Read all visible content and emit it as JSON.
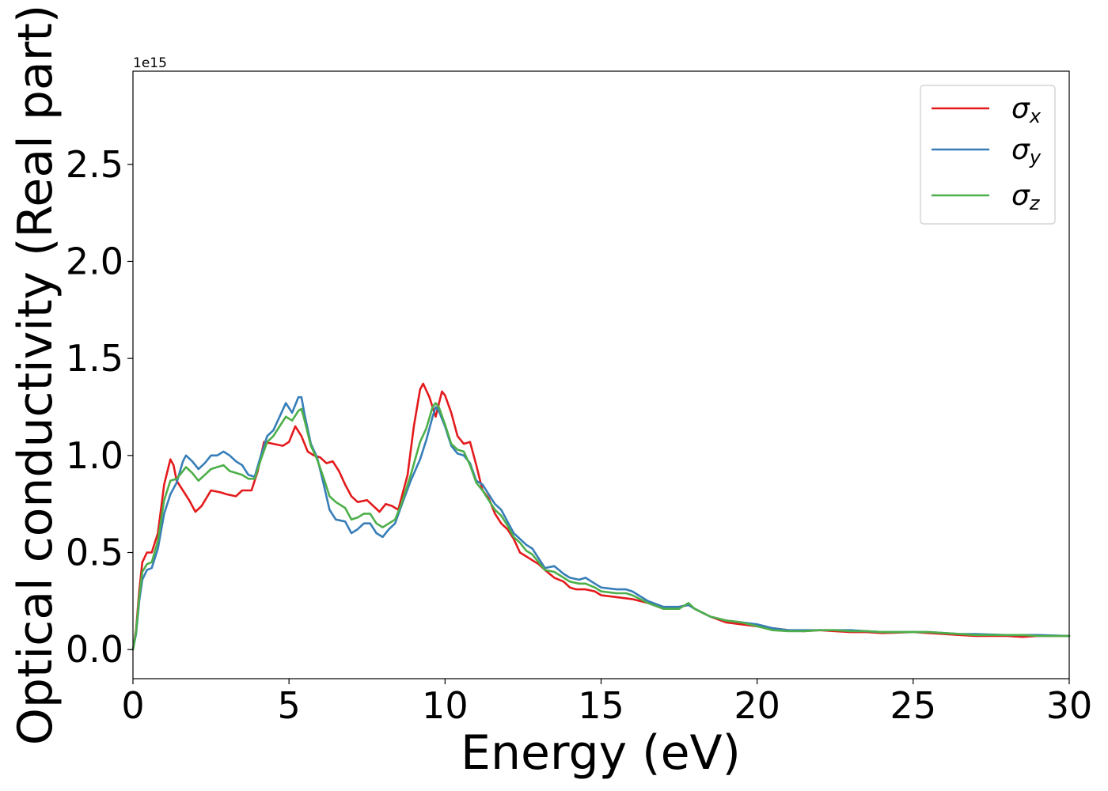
{
  "chart_data": {
    "type": "line",
    "xlabel": "Energy (eV)",
    "ylabel": "Optical conductivity (Real part)",
    "y_offset_text": "1e15",
    "xlim": [
      0,
      30
    ],
    "ylim": [
      -0.15,
      2.98
    ],
    "xticks": [
      0,
      5,
      10,
      15,
      20,
      25,
      30
    ],
    "xtick_labels": [
      "0",
      "5",
      "10",
      "15",
      "20",
      "25",
      "30"
    ],
    "yticks": [
      0.0,
      0.5,
      1.0,
      1.5,
      2.0,
      2.5
    ],
    "ytick_labels": [
      "0.0",
      "0.5",
      "1.0",
      "1.5",
      "2.0",
      "2.5"
    ],
    "legend_position": "upper-right",
    "series": [
      {
        "name": "σx",
        "base": "σ",
        "sub": "x",
        "color": "#e41a1c",
        "points": [
          [
            0,
            0
          ],
          [
            0.1,
            0.1
          ],
          [
            0.2,
            0.3
          ],
          [
            0.3,
            0.45
          ],
          [
            0.45,
            0.5
          ],
          [
            0.6,
            0.5
          ],
          [
            0.8,
            0.6
          ],
          [
            1.0,
            0.85
          ],
          [
            1.2,
            0.98
          ],
          [
            1.3,
            0.95
          ],
          [
            1.4,
            0.87
          ],
          [
            1.6,
            0.82
          ],
          [
            1.8,
            0.77
          ],
          [
            2.0,
            0.71
          ],
          [
            2.2,
            0.74
          ],
          [
            2.5,
            0.82
          ],
          [
            2.8,
            0.81
          ],
          [
            3.0,
            0.8
          ],
          [
            3.3,
            0.79
          ],
          [
            3.5,
            0.82
          ],
          [
            3.8,
            0.82
          ],
          [
            4.0,
            0.92
          ],
          [
            4.2,
            1.07
          ],
          [
            4.5,
            1.06
          ],
          [
            4.8,
            1.05
          ],
          [
            5.0,
            1.07
          ],
          [
            5.2,
            1.15
          ],
          [
            5.4,
            1.1
          ],
          [
            5.6,
            1.02
          ],
          [
            5.8,
            1.0
          ],
          [
            6.0,
            0.99
          ],
          [
            6.2,
            0.96
          ],
          [
            6.4,
            0.97
          ],
          [
            6.6,
            0.92
          ],
          [
            6.8,
            0.85
          ],
          [
            7.0,
            0.79
          ],
          [
            7.2,
            0.76
          ],
          [
            7.5,
            0.77
          ],
          [
            7.7,
            0.74
          ],
          [
            7.9,
            0.71
          ],
          [
            8.1,
            0.75
          ],
          [
            8.3,
            0.74
          ],
          [
            8.5,
            0.72
          ],
          [
            8.8,
            0.9
          ],
          [
            9.0,
            1.15
          ],
          [
            9.2,
            1.34
          ],
          [
            9.3,
            1.37
          ],
          [
            9.5,
            1.3
          ],
          [
            9.7,
            1.2
          ],
          [
            9.9,
            1.33
          ],
          [
            10.0,
            1.31
          ],
          [
            10.2,
            1.22
          ],
          [
            10.4,
            1.1
          ],
          [
            10.6,
            1.06
          ],
          [
            10.8,
            1.07
          ],
          [
            11.0,
            0.95
          ],
          [
            11.2,
            0.82
          ],
          [
            11.4,
            0.78
          ],
          [
            11.6,
            0.7
          ],
          [
            11.8,
            0.65
          ],
          [
            12.0,
            0.62
          ],
          [
            12.2,
            0.57
          ],
          [
            12.4,
            0.5
          ],
          [
            12.6,
            0.48
          ],
          [
            12.8,
            0.46
          ],
          [
            13.0,
            0.44
          ],
          [
            13.2,
            0.41
          ],
          [
            13.5,
            0.37
          ],
          [
            13.8,
            0.35
          ],
          [
            14.0,
            0.32
          ],
          [
            14.2,
            0.31
          ],
          [
            14.5,
            0.31
          ],
          [
            14.8,
            0.3
          ],
          [
            15.0,
            0.28
          ],
          [
            15.5,
            0.27
          ],
          [
            16.0,
            0.26
          ],
          [
            16.5,
            0.24
          ],
          [
            17.0,
            0.21
          ],
          [
            17.5,
            0.22
          ],
          [
            17.8,
            0.23
          ],
          [
            18.0,
            0.21
          ],
          [
            18.5,
            0.17
          ],
          [
            19.0,
            0.14
          ],
          [
            19.5,
            0.13
          ],
          [
            20.0,
            0.12
          ],
          [
            20.5,
            0.11
          ],
          [
            21.0,
            0.1
          ],
          [
            21.5,
            0.095
          ],
          [
            22.0,
            0.1
          ],
          [
            22.5,
            0.095
          ],
          [
            23.0,
            0.09
          ],
          [
            23.5,
            0.09
          ],
          [
            24.0,
            0.085
          ],
          [
            25.0,
            0.09
          ],
          [
            25.5,
            0.085
          ],
          [
            26.0,
            0.08
          ],
          [
            26.5,
            0.075
          ],
          [
            27.0,
            0.07
          ],
          [
            28.0,
            0.07
          ],
          [
            28.5,
            0.065
          ],
          [
            29.0,
            0.07
          ],
          [
            30.0,
            0.07
          ]
        ]
      },
      {
        "name": "σy",
        "base": "σ",
        "sub": "y",
        "color": "#377eb8",
        "points": [
          [
            0,
            0
          ],
          [
            0.1,
            0.08
          ],
          [
            0.2,
            0.25
          ],
          [
            0.3,
            0.36
          ],
          [
            0.45,
            0.41
          ],
          [
            0.6,
            0.42
          ],
          [
            0.8,
            0.52
          ],
          [
            1.0,
            0.7
          ],
          [
            1.2,
            0.8
          ],
          [
            1.4,
            0.86
          ],
          [
            1.6,
            0.97
          ],
          [
            1.7,
            1.0
          ],
          [
            1.9,
            0.97
          ],
          [
            2.1,
            0.93
          ],
          [
            2.3,
            0.96
          ],
          [
            2.5,
            1.0
          ],
          [
            2.7,
            1.0
          ],
          [
            2.9,
            1.02
          ],
          [
            3.1,
            1.0
          ],
          [
            3.3,
            0.97
          ],
          [
            3.5,
            0.95
          ],
          [
            3.7,
            0.9
          ],
          [
            3.9,
            0.89
          ],
          [
            4.1,
            1.0
          ],
          [
            4.3,
            1.1
          ],
          [
            4.5,
            1.13
          ],
          [
            4.7,
            1.2
          ],
          [
            4.9,
            1.27
          ],
          [
            5.1,
            1.22
          ],
          [
            5.3,
            1.3
          ],
          [
            5.4,
            1.3
          ],
          [
            5.5,
            1.21
          ],
          [
            5.7,
            1.06
          ],
          [
            5.9,
            0.99
          ],
          [
            6.1,
            0.86
          ],
          [
            6.3,
            0.72
          ],
          [
            6.5,
            0.67
          ],
          [
            6.8,
            0.66
          ],
          [
            7.0,
            0.6
          ],
          [
            7.2,
            0.62
          ],
          [
            7.4,
            0.65
          ],
          [
            7.6,
            0.65
          ],
          [
            7.8,
            0.6
          ],
          [
            8.0,
            0.58
          ],
          [
            8.2,
            0.62
          ],
          [
            8.4,
            0.65
          ],
          [
            8.6,
            0.74
          ],
          [
            8.9,
            0.87
          ],
          [
            9.2,
            0.98
          ],
          [
            9.4,
            1.08
          ],
          [
            9.6,
            1.2
          ],
          [
            9.7,
            1.25
          ],
          [
            9.8,
            1.23
          ],
          [
            10.0,
            1.15
          ],
          [
            10.2,
            1.05
          ],
          [
            10.4,
            1.01
          ],
          [
            10.6,
            1.0
          ],
          [
            10.8,
            0.96
          ],
          [
            11.0,
            0.87
          ],
          [
            11.2,
            0.85
          ],
          [
            11.4,
            0.8
          ],
          [
            11.6,
            0.75
          ],
          [
            11.8,
            0.72
          ],
          [
            12.0,
            0.66
          ],
          [
            12.2,
            0.6
          ],
          [
            12.4,
            0.57
          ],
          [
            12.6,
            0.54
          ],
          [
            12.8,
            0.52
          ],
          [
            13.0,
            0.47
          ],
          [
            13.2,
            0.42
          ],
          [
            13.5,
            0.43
          ],
          [
            13.8,
            0.39
          ],
          [
            14.0,
            0.37
          ],
          [
            14.3,
            0.36
          ],
          [
            14.5,
            0.37
          ],
          [
            14.8,
            0.34
          ],
          [
            15.0,
            0.32
          ],
          [
            15.5,
            0.31
          ],
          [
            15.8,
            0.31
          ],
          [
            16.0,
            0.3
          ],
          [
            16.5,
            0.25
          ],
          [
            17.0,
            0.22
          ],
          [
            17.5,
            0.22
          ],
          [
            17.8,
            0.23
          ],
          [
            18.0,
            0.21
          ],
          [
            18.5,
            0.17
          ],
          [
            19.0,
            0.15
          ],
          [
            19.5,
            0.14
          ],
          [
            20.0,
            0.13
          ],
          [
            20.5,
            0.11
          ],
          [
            21.0,
            0.1
          ],
          [
            21.5,
            0.1
          ],
          [
            22.0,
            0.1
          ],
          [
            22.5,
            0.1
          ],
          [
            23.0,
            0.1
          ],
          [
            23.5,
            0.095
          ],
          [
            24.0,
            0.09
          ],
          [
            25.0,
            0.09
          ],
          [
            25.5,
            0.09
          ],
          [
            26.0,
            0.085
          ],
          [
            26.5,
            0.08
          ],
          [
            27.0,
            0.08
          ],
          [
            28.0,
            0.075
          ],
          [
            28.5,
            0.075
          ],
          [
            29.0,
            0.075
          ],
          [
            30.0,
            0.07
          ]
        ]
      },
      {
        "name": "σz",
        "base": "σ",
        "sub": "z",
        "color": "#4daf4a",
        "points": [
          [
            0,
            0
          ],
          [
            0.1,
            0.09
          ],
          [
            0.2,
            0.27
          ],
          [
            0.3,
            0.4
          ],
          [
            0.45,
            0.44
          ],
          [
            0.6,
            0.45
          ],
          [
            0.8,
            0.56
          ],
          [
            1.0,
            0.77
          ],
          [
            1.2,
            0.87
          ],
          [
            1.4,
            0.88
          ],
          [
            1.6,
            0.92
          ],
          [
            1.7,
            0.94
          ],
          [
            1.9,
            0.91
          ],
          [
            2.1,
            0.87
          ],
          [
            2.3,
            0.9
          ],
          [
            2.5,
            0.93
          ],
          [
            2.7,
            0.94
          ],
          [
            2.9,
            0.95
          ],
          [
            3.1,
            0.92
          ],
          [
            3.3,
            0.91
          ],
          [
            3.5,
            0.9
          ],
          [
            3.7,
            0.88
          ],
          [
            3.9,
            0.88
          ],
          [
            4.1,
            0.98
          ],
          [
            4.3,
            1.07
          ],
          [
            4.5,
            1.1
          ],
          [
            4.7,
            1.15
          ],
          [
            4.9,
            1.2
          ],
          [
            5.1,
            1.18
          ],
          [
            5.3,
            1.23
          ],
          [
            5.4,
            1.24
          ],
          [
            5.5,
            1.18
          ],
          [
            5.7,
            1.05
          ],
          [
            5.9,
            0.98
          ],
          [
            6.1,
            0.89
          ],
          [
            6.3,
            0.79
          ],
          [
            6.5,
            0.76
          ],
          [
            6.8,
            0.73
          ],
          [
            7.0,
            0.67
          ],
          [
            7.2,
            0.68
          ],
          [
            7.4,
            0.7
          ],
          [
            7.6,
            0.7
          ],
          [
            7.8,
            0.65
          ],
          [
            8.0,
            0.63
          ],
          [
            8.2,
            0.65
          ],
          [
            8.4,
            0.67
          ],
          [
            8.6,
            0.75
          ],
          [
            8.9,
            0.9
          ],
          [
            9.2,
            1.07
          ],
          [
            9.4,
            1.14
          ],
          [
            9.6,
            1.25
          ],
          [
            9.7,
            1.27
          ],
          [
            9.8,
            1.25
          ],
          [
            10.0,
            1.16
          ],
          [
            10.2,
            1.06
          ],
          [
            10.4,
            1.03
          ],
          [
            10.6,
            1.02
          ],
          [
            10.8,
            0.95
          ],
          [
            11.0,
            0.86
          ],
          [
            11.2,
            0.82
          ],
          [
            11.4,
            0.77
          ],
          [
            11.6,
            0.72
          ],
          [
            11.8,
            0.69
          ],
          [
            12.0,
            0.64
          ],
          [
            12.2,
            0.58
          ],
          [
            12.4,
            0.55
          ],
          [
            12.6,
            0.51
          ],
          [
            12.8,
            0.49
          ],
          [
            13.0,
            0.45
          ],
          [
            13.2,
            0.41
          ],
          [
            13.5,
            0.4
          ],
          [
            13.8,
            0.37
          ],
          [
            14.0,
            0.35
          ],
          [
            14.3,
            0.34
          ],
          [
            14.5,
            0.34
          ],
          [
            14.8,
            0.32
          ],
          [
            15.0,
            0.3
          ],
          [
            15.5,
            0.29
          ],
          [
            15.8,
            0.29
          ],
          [
            16.0,
            0.28
          ],
          [
            16.5,
            0.24
          ],
          [
            17.0,
            0.21
          ],
          [
            17.5,
            0.21
          ],
          [
            17.8,
            0.24
          ],
          [
            18.0,
            0.21
          ],
          [
            18.5,
            0.17
          ],
          [
            19.0,
            0.15
          ],
          [
            19.5,
            0.14
          ],
          [
            20.0,
            0.12
          ],
          [
            20.5,
            0.1
          ],
          [
            21.0,
            0.095
          ],
          [
            21.5,
            0.095
          ],
          [
            22.0,
            0.1
          ],
          [
            22.5,
            0.1
          ],
          [
            23.0,
            0.095
          ],
          [
            23.5,
            0.095
          ],
          [
            24.0,
            0.09
          ],
          [
            25.0,
            0.09
          ],
          [
            25.5,
            0.09
          ],
          [
            26.0,
            0.085
          ],
          [
            26.5,
            0.08
          ],
          [
            27.0,
            0.075
          ],
          [
            28.0,
            0.075
          ],
          [
            28.5,
            0.075
          ],
          [
            29.0,
            0.07
          ],
          [
            30.0,
            0.07
          ]
        ]
      }
    ]
  }
}
